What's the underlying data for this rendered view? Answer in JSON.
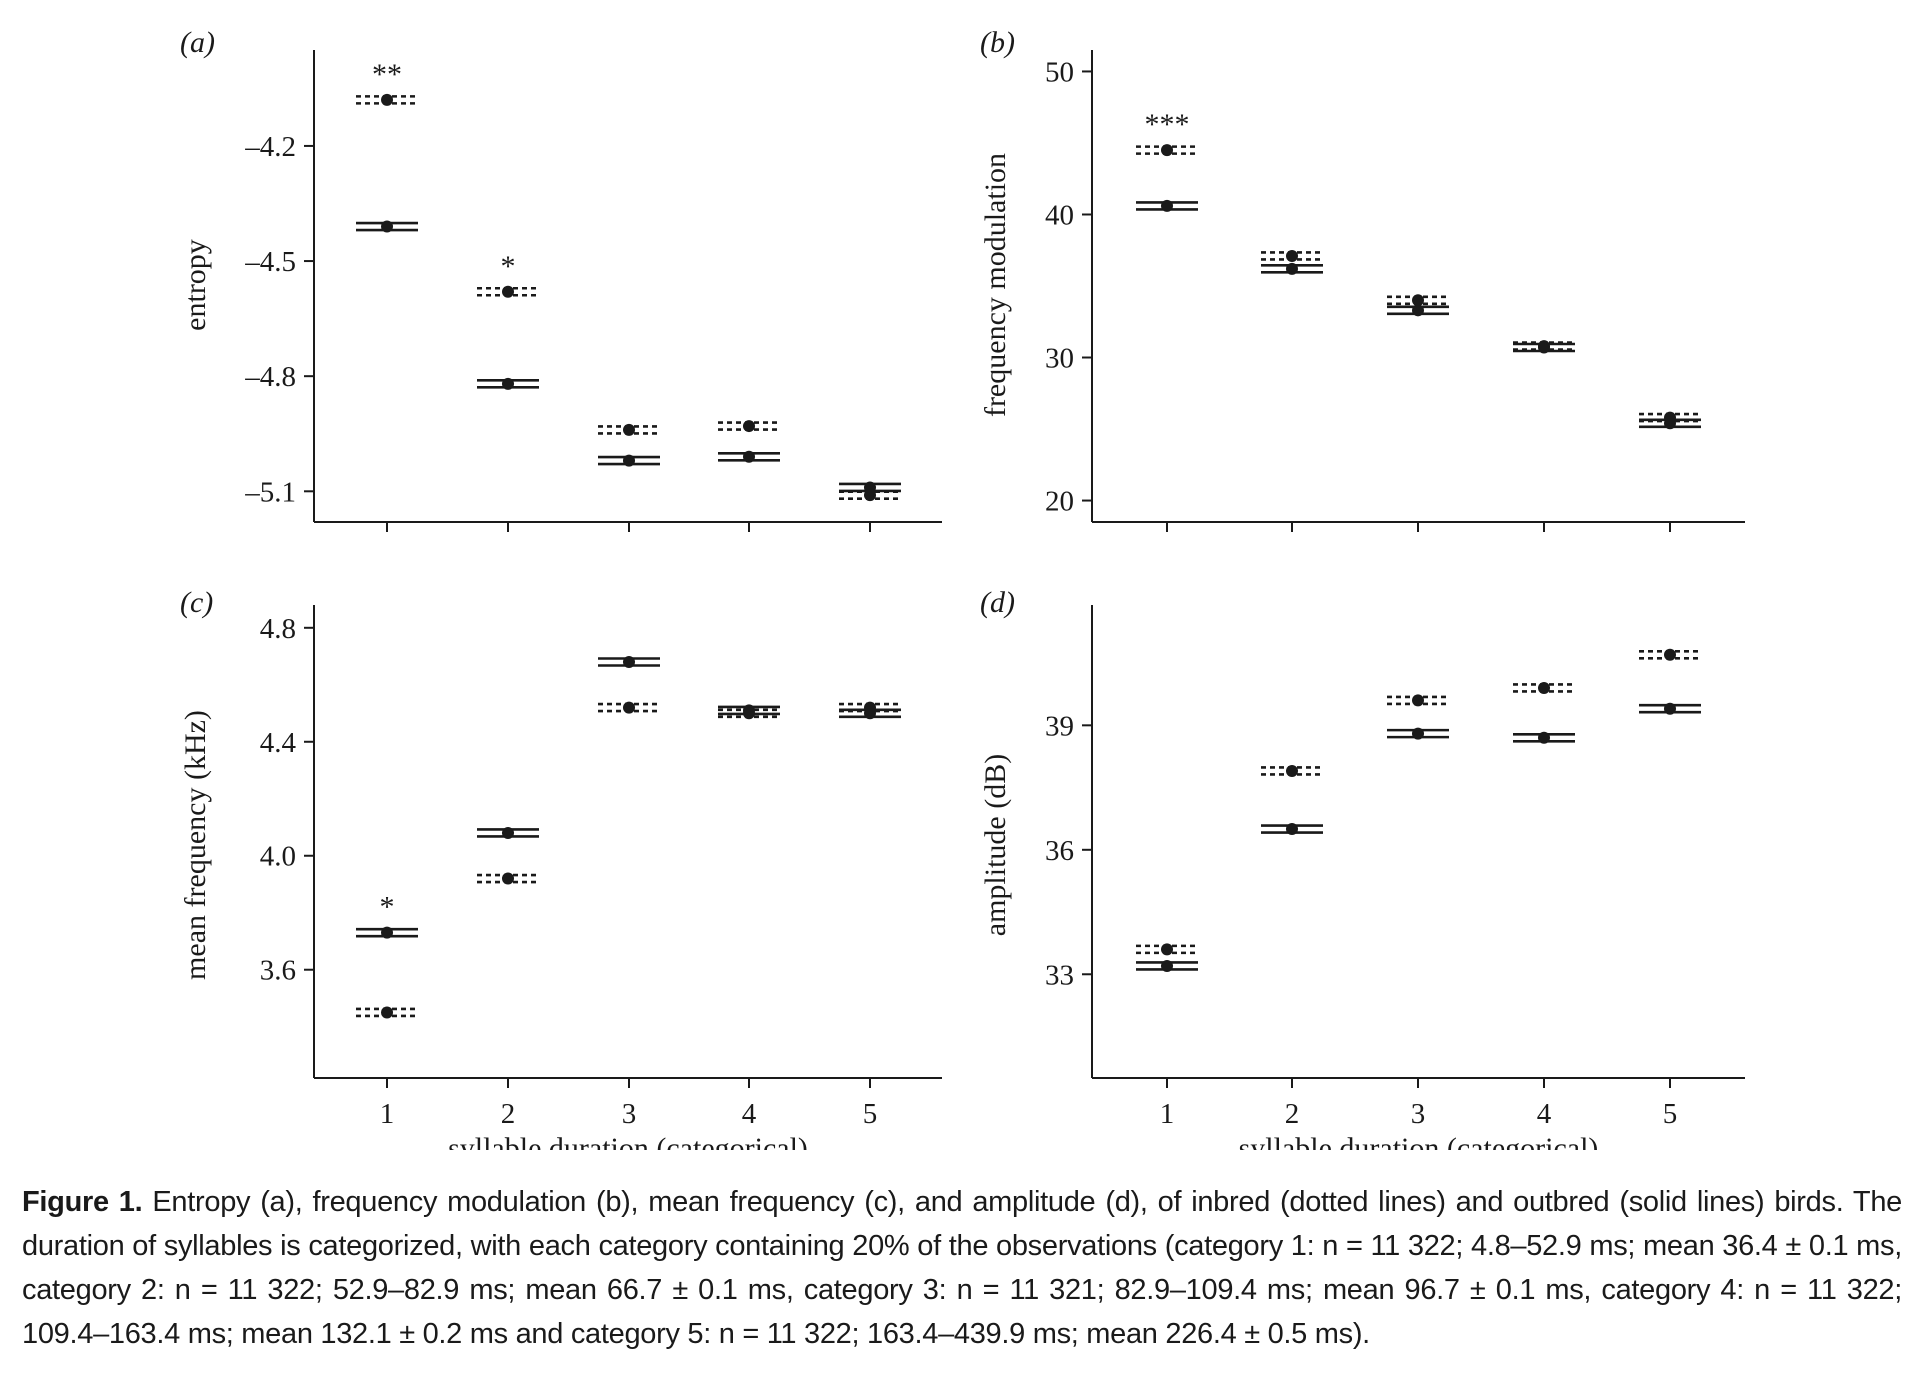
{
  "figure": {
    "caption_label": "Figure 1.",
    "caption_text": "Entropy (a), frequency modulation (b), mean frequency (c), and amplitude (d), of inbred (dotted lines) and outbred (solid lines) birds. The duration of syllables is categorized, with each category containing 20% of the observations (category 1: n = 11 322; 4.8–52.9 ms; mean 36.4 ± 0.1 ms, category 2: n = 11 322; 52.9–82.9 ms; mean 66.7 ± 0.1 ms, category 3: n = 11 321; 82.9–109.4 ms; mean 96.7 ± 0.1 ms, category 4: n = 11 322; 109.4–163.4 ms; mean 132.1 ± 0.2 ms and category 5: n = 11 322; 163.4–439.9 ms; mean 226.4 ± 0.5 ms)."
  },
  "chart_data": [
    {
      "panel": "(a)",
      "type": "scatter",
      "ylabel": "entropy",
      "xlabel": "",
      "categories": [
        "1",
        "2",
        "3",
        "4",
        "5"
      ],
      "yticks": [
        -4.2,
        -4.5,
        -4.8,
        -5.1
      ],
      "ytick_labels": [
        "–4.2",
        "–4.5",
        "–4.8",
        "–5.1"
      ],
      "ylim": [
        -5.18,
        -3.95
      ],
      "inbred": [
        -4.08,
        -4.58,
        -4.94,
        -4.93,
        -5.11
      ],
      "outbred": [
        -4.41,
        -4.82,
        -5.02,
        -5.01,
        -5.09
      ],
      "significance": [
        "**",
        "*",
        "",
        "",
        ""
      ]
    },
    {
      "panel": "(b)",
      "type": "scatter",
      "ylabel": "frequency modulation",
      "xlabel": "",
      "categories": [
        "1",
        "2",
        "3",
        "4",
        "5"
      ],
      "yticks": [
        20,
        30,
        40,
        50
      ],
      "ytick_labels": [
        "20",
        "30",
        "40",
        "50"
      ],
      "ylim": [
        18.5,
        51.5
      ],
      "inbred": [
        44.5,
        37.1,
        34.0,
        30.8,
        25.8
      ],
      "outbred": [
        40.6,
        36.2,
        33.3,
        30.7,
        25.4
      ],
      "significance": [
        "***",
        "",
        "",
        "",
        ""
      ]
    },
    {
      "panel": "(c)",
      "type": "scatter",
      "ylabel": "mean frequency (kHz)",
      "xlabel": "syllable duration (categorical)",
      "categories": [
        "1",
        "2",
        "3",
        "4",
        "5"
      ],
      "yticks": [
        3.6,
        4.0,
        4.4,
        4.8
      ],
      "ytick_labels": [
        "3.6",
        "4.0",
        "4.4",
        "4.8"
      ],
      "ylim": [
        3.22,
        4.88
      ],
      "inbred": [
        3.45,
        3.92,
        4.52,
        4.5,
        4.52
      ],
      "outbred": [
        3.73,
        4.08,
        4.68,
        4.51,
        4.5
      ],
      "significance": [
        "*",
        "",
        "",
        "",
        ""
      ]
    },
    {
      "panel": "(d)",
      "type": "scatter",
      "ylabel": "amplitude (dB)",
      "xlabel": "syllable duration (categorical)",
      "categories": [
        "1",
        "2",
        "3",
        "4",
        "5"
      ],
      "yticks": [
        33,
        36,
        39
      ],
      "ytick_labels": [
        "33",
        "36",
        "39"
      ],
      "ylim": [
        30.5,
        41.9
      ],
      "inbred": [
        33.6,
        37.9,
        39.6,
        39.9,
        40.7
      ],
      "outbred": [
        33.2,
        36.5,
        38.8,
        38.7,
        39.4
      ],
      "significance": [
        "",
        "",
        "",
        "",
        ""
      ]
    }
  ]
}
